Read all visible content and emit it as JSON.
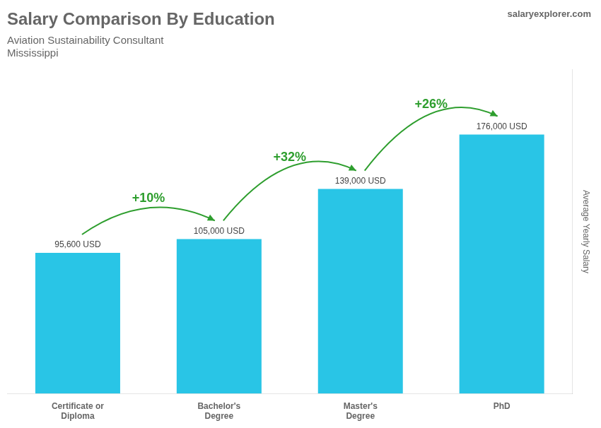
{
  "chart_data": {
    "type": "bar",
    "title": "Salary Comparison By Education",
    "subtitle": "Aviation Sustainability Consultant",
    "location": "Mississippi",
    "brand": "salaryexplorer.com",
    "ylabel": "Average Yearly Salary",
    "categories": [
      "Certificate or\nDiploma",
      "Bachelor's\nDegree",
      "Master's\nDegree",
      "PhD"
    ],
    "values": [
      95600,
      105000,
      139000,
      176000
    ],
    "value_labels": [
      "95,600 USD",
      "105,000 USD",
      "139,000 USD",
      "176,000 USD"
    ],
    "data_labels": true,
    "annotations": [
      "+10%",
      "+32%",
      "+26%"
    ],
    "color": "#29C5E6",
    "ylim": [
      0,
      220000
    ],
    "tick_labels": "x",
    "grid": false
  }
}
